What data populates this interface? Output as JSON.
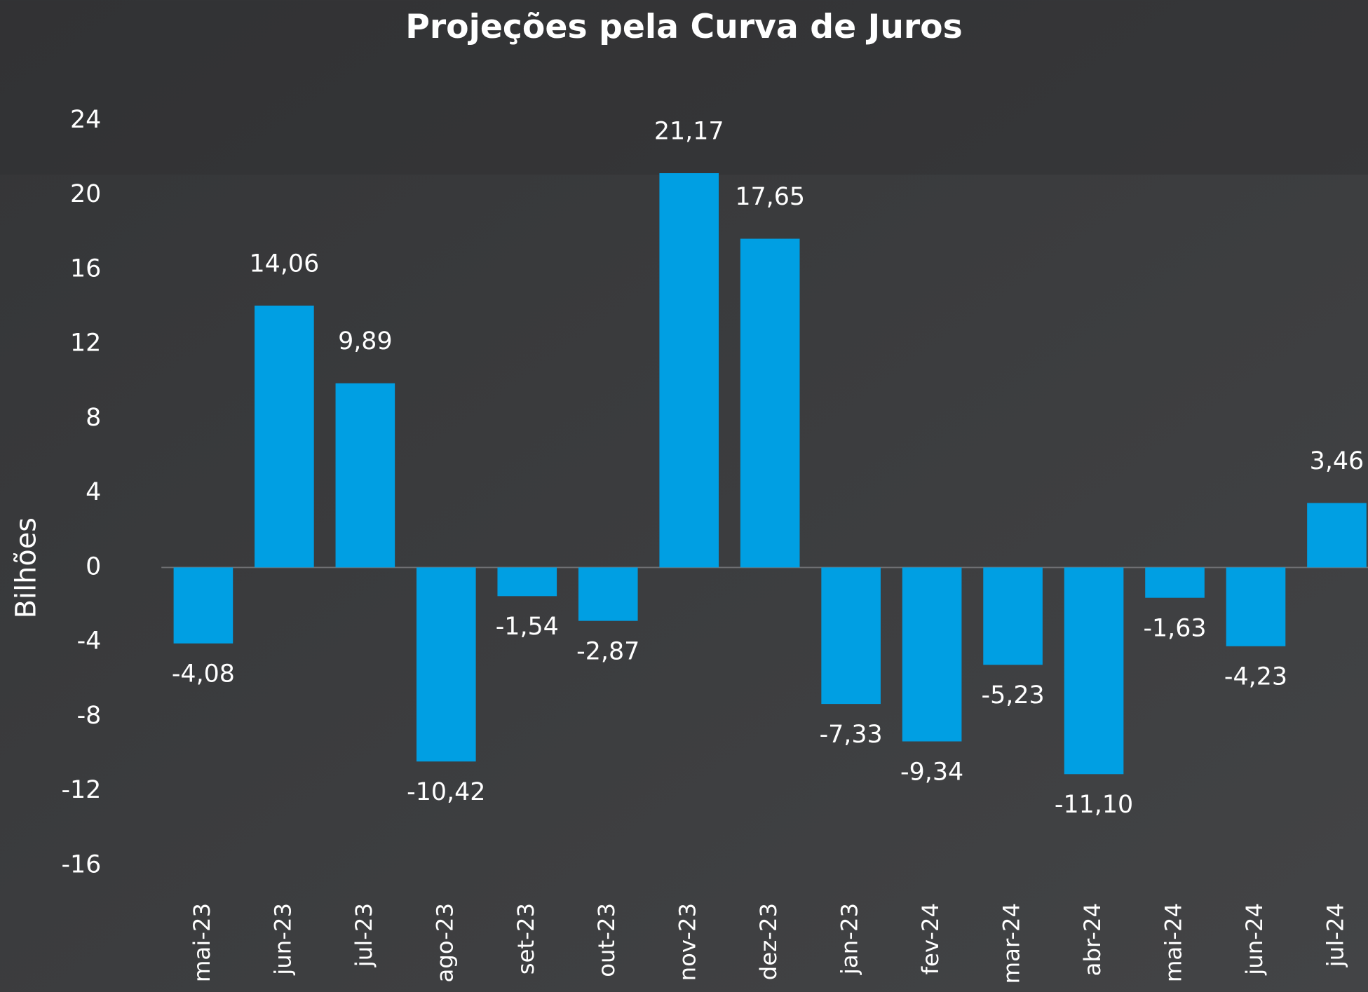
{
  "chart_data": {
    "type": "bar",
    "title": "Projeções pela Curva de Juros",
    "y_label": "Bilhões",
    "categories": [
      "mai-23",
      "jun-23",
      "jul-23",
      "ago-23",
      "set-23",
      "out-23",
      "nov-23",
      "dez-23",
      "jan-23",
      "fev-24",
      "mar-24",
      "abr-24",
      "mai-24",
      "jun-24",
      "jul-24"
    ],
    "values": [
      -4.08,
      14.06,
      9.89,
      -10.42,
      -1.54,
      -2.87,
      21.17,
      17.65,
      -7.33,
      -9.34,
      -5.23,
      -11.1,
      -1.63,
      -4.23,
      3.46
    ],
    "value_labels": [
      "-4,08",
      "14,06",
      "9,89",
      "-10,42",
      "-1,54",
      "-2,87",
      "21,17",
      "17,65",
      "-7,33",
      "-9,34",
      "-5,23",
      "-11,10",
      "-1,63",
      "-4,23",
      "3,46"
    ],
    "color": "#009fe3",
    "ylim": [
      -16,
      24
    ],
    "yticks": [
      -16,
      -12,
      -8,
      -4,
      0,
      4,
      8,
      12,
      16,
      20,
      24
    ],
    "grid": false
  }
}
